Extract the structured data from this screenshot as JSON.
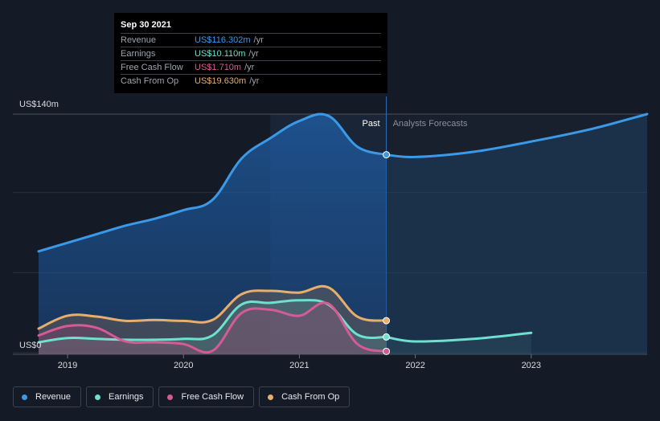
{
  "tooltip": {
    "date": "Sep 30 2021",
    "rows": [
      {
        "label": "Revenue",
        "value": "US$116.302m",
        "unit": "/yr",
        "color": "#3b9ae8"
      },
      {
        "label": "Earnings",
        "value": "US$10.110m",
        "unit": "/yr",
        "color": "#6ee0cf"
      },
      {
        "label": "Free Cash Flow",
        "value": "US$1.710m",
        "unit": "/yr",
        "color": "#d65a93"
      },
      {
        "label": "Cash From Op",
        "value": "US$19.630m",
        "unit": "/yr",
        "color": "#e8ae6b"
      }
    ]
  },
  "legend": [
    {
      "label": "Revenue",
      "color": "#3b9ae8"
    },
    {
      "label": "Earnings",
      "color": "#6ee0cf"
    },
    {
      "label": "Free Cash Flow",
      "color": "#d65a93"
    },
    {
      "label": "Cash From Op",
      "color": "#e8ae6b"
    }
  ],
  "chart_data": {
    "type": "line",
    "y_top_label": "US$140m",
    "y_bottom_label": "US$0",
    "ylim": [
      0,
      140
    ],
    "xlim": [
      2018.75,
      2024.0
    ],
    "x_ticks": [
      {
        "value": 2019,
        "label": "2019"
      },
      {
        "value": 2020,
        "label": "2020"
      },
      {
        "value": 2021,
        "label": "2021"
      },
      {
        "value": 2022,
        "label": "2022"
      },
      {
        "value": 2023,
        "label": "2023"
      }
    ],
    "past_label": "Past",
    "forecast_label": "Analysts Forecasts",
    "divider_x": 2021.75,
    "highlight_start": 2020.75,
    "grid": true,
    "series": [
      {
        "name": "Revenue",
        "color": "#3b9ae8",
        "x": [
          2018.75,
          2019.0,
          2019.25,
          2019.5,
          2019.75,
          2020.0,
          2020.25,
          2020.5,
          2020.75,
          2021.0,
          2021.25,
          2021.5,
          2021.75
        ],
        "y": [
          60,
          65,
          70,
          75,
          79,
          84,
          90,
          114,
          126,
          136,
          139,
          121,
          116.3
        ]
      },
      {
        "name": "Revenue forecast",
        "color": "#3b9ae8",
        "forecast": true,
        "x": [
          2021.75,
          2022.0,
          2022.5,
          2023.0,
          2023.5,
          2024.0
        ],
        "y": [
          116.3,
          115,
          118,
          124,
          131,
          140
        ]
      },
      {
        "name": "Earnings",
        "color": "#6ee0cf",
        "x": [
          2018.75,
          2019.0,
          2019.25,
          2019.5,
          2019.75,
          2020.0,
          2020.25,
          2020.5,
          2020.75,
          2021.0,
          2021.25,
          2021.5,
          2021.75
        ],
        "y": [
          7,
          9.5,
          9,
          8.5,
          8.5,
          9,
          11,
          29,
          30,
          31.5,
          29,
          11.5,
          10.1
        ]
      },
      {
        "name": "Earnings forecast",
        "color": "#6ee0cf",
        "forecast": true,
        "x": [
          2021.75,
          2022.0,
          2022.5,
          2023.0
        ],
        "y": [
          10.1,
          7.5,
          9,
          12.5
        ]
      },
      {
        "name": "Free Cash Flow",
        "color": "#d65a93",
        "x": [
          2018.75,
          2019.0,
          2019.25,
          2019.5,
          2019.75,
          2020.0,
          2020.25,
          2020.5,
          2020.75,
          2021.0,
          2021.25,
          2021.5,
          2021.75
        ],
        "y": [
          11,
          16.5,
          15.5,
          7.5,
          7,
          6,
          2,
          24,
          26,
          22.5,
          29.5,
          6,
          1.71
        ]
      },
      {
        "name": "Cash From Op",
        "color": "#e8ae6b",
        "x": [
          2018.75,
          2019.0,
          2019.25,
          2019.5,
          2019.75,
          2020.0,
          2020.25,
          2020.5,
          2020.75,
          2021.0,
          2021.25,
          2021.5,
          2021.75
        ],
        "y": [
          15,
          22.5,
          22,
          19.5,
          20,
          19.5,
          20,
          35,
          37,
          36,
          39,
          22,
          19.63
        ]
      }
    ]
  }
}
